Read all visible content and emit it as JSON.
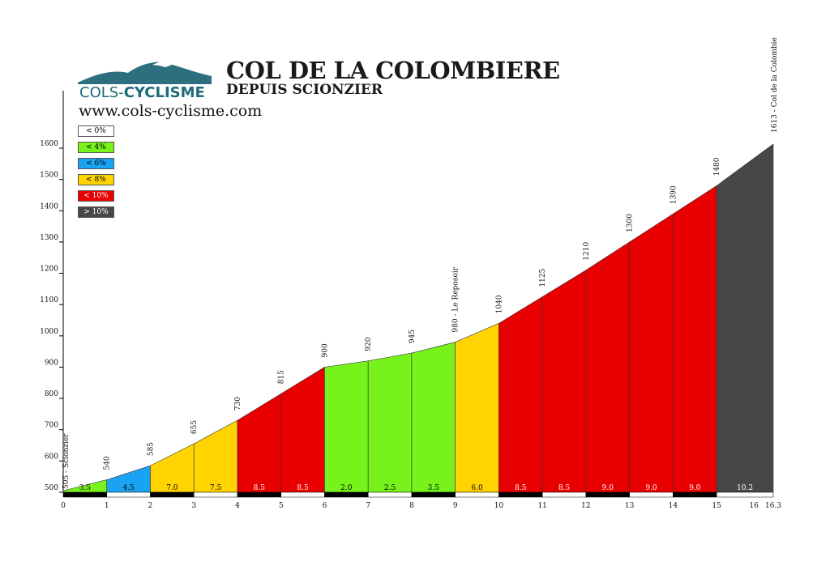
{
  "header": {
    "title": "COL DE LA COLOMBIERE",
    "subtitle": "DEPUIS SCIONZIER",
    "url": "www.cols-cyclisme.com",
    "logo_part1": "COLS-",
    "logo_part2": "CYCLISME"
  },
  "legend": [
    {
      "label": "< 0%",
      "color": "#ffffff",
      "text_color": "#000000"
    },
    {
      "label": "< 4%",
      "color": "#77f21a",
      "text_color": "#000000"
    },
    {
      "label": "< 6%",
      "color": "#19a3f2",
      "text_color": "#000000"
    },
    {
      "label": "< 8%",
      "color": "#ffd400",
      "text_color": "#000000"
    },
    {
      "label": "< 10%",
      "color": "#e80000",
      "text_color": "#ffffff"
    },
    {
      "label": "> 10%",
      "color": "#474747",
      "text_color": "#ffffff"
    }
  ],
  "chart_data": {
    "type": "area",
    "title": "COL DE LA COLOMBIERE",
    "subtitle": "DEPUIS SCIONZIER",
    "x_ticks": [
      "0",
      "1",
      "2",
      "3",
      "4",
      "5",
      "6",
      "7",
      "8",
      "9",
      "10",
      "11",
      "12",
      "13",
      "14",
      "15",
      "16",
      "16.3"
    ],
    "y_ticks": [
      "500",
      "600",
      "700",
      "800",
      "900",
      "1000",
      "1100",
      "1200",
      "1300",
      "1400",
      "1500",
      "1600"
    ],
    "ylim": [
      500,
      1613
    ],
    "xlim": [
      0,
      16.3
    ],
    "x": [
      0,
      1,
      2,
      3,
      4,
      5,
      6,
      7,
      8,
      9,
      10,
      11,
      12,
      13,
      14,
      15,
      16.3
    ],
    "elevations": [
      505,
      540,
      585,
      655,
      730,
      815,
      900,
      920,
      945,
      980,
      1040,
      1125,
      1210,
      1300,
      1390,
      1480,
      1613
    ],
    "point_labels": [
      "505 - Scionzier",
      "540",
      "585",
      "655",
      "730",
      "815",
      "900",
      "920",
      "945",
      "980 - Le Reposoir",
      "1040",
      "1125",
      "1210",
      "1300",
      "1390",
      "1480",
      "1613 - Col de la Colombie"
    ],
    "segments": [
      {
        "gradient": "3.5",
        "color": "#77f21a"
      },
      {
        "gradient": "4.5",
        "color": "#19a3f2"
      },
      {
        "gradient": "7.0",
        "color": "#ffd400"
      },
      {
        "gradient": "7.5",
        "color": "#ffd400"
      },
      {
        "gradient": "8.5",
        "color": "#e80000"
      },
      {
        "gradient": "8.5",
        "color": "#e80000"
      },
      {
        "gradient": "2.0",
        "color": "#77f21a"
      },
      {
        "gradient": "2.5",
        "color": "#77f21a"
      },
      {
        "gradient": "3.5",
        "color": "#77f21a"
      },
      {
        "gradient": "6.0",
        "color": "#ffd400"
      },
      {
        "gradient": "8.5",
        "color": "#e80000"
      },
      {
        "gradient": "8.5",
        "color": "#e80000"
      },
      {
        "gradient": "9.0",
        "color": "#e80000"
      },
      {
        "gradient": "9.0",
        "color": "#e80000"
      },
      {
        "gradient": "9.0",
        "color": "#e80000"
      },
      {
        "gradient": "10.2",
        "color": "#474747"
      }
    ]
  }
}
